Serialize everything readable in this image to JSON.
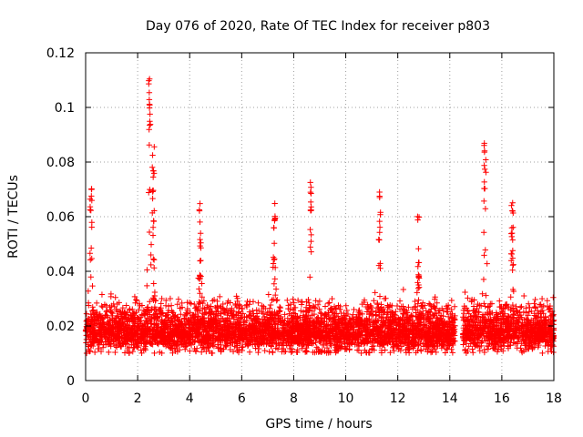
{
  "chart_data": {
    "type": "scatter",
    "title": "Day 076 of 2020, Rate Of TEC Index for receiver p803",
    "xlabel": "GPS time / hours",
    "ylabel": "ROTI / TECUs",
    "xlim": [
      0,
      18
    ],
    "ylim": [
      0,
      0.12
    ],
    "xticks": [
      "0",
      "2",
      "4",
      "6",
      "8",
      "10",
      "12",
      "14",
      "16",
      "18"
    ],
    "yticks": [
      "0",
      "0.02",
      "0.04",
      "0.06",
      "0.08",
      "0.1",
      "0.12"
    ],
    "grid": true,
    "marker": "+",
    "color": "#ff0000",
    "gap_hours": [
      14.2,
      14.5
    ],
    "peaks": [
      {
        "x": 0.2,
        "y": 0.073
      },
      {
        "x": 2.45,
        "y": 0.111
      },
      {
        "x": 2.6,
        "y": 0.088
      },
      {
        "x": 4.4,
        "y": 0.067
      },
      {
        "x": 7.25,
        "y": 0.065
      },
      {
        "x": 8.65,
        "y": 0.074
      },
      {
        "x": 11.3,
        "y": 0.07
      },
      {
        "x": 12.8,
        "y": 0.063
      },
      {
        "x": 15.35,
        "y": 0.091
      },
      {
        "x": 16.4,
        "y": 0.069
      }
    ]
  }
}
